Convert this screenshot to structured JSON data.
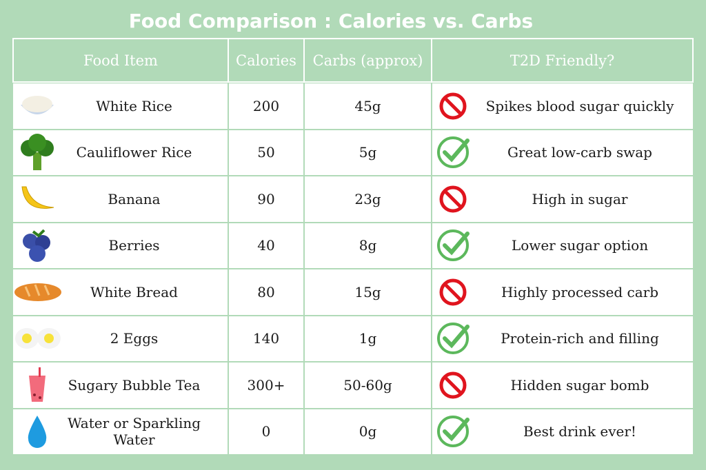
{
  "title": "Food Comparison : Calories vs. Carbs",
  "headers": [
    "Food Item",
    "Calories",
    "Carbs (approx)",
    "T2D Friendly?"
  ],
  "rows": [
    {
      "food": "White Rice",
      "icon": "rice-bowl-icon",
      "calories": "200",
      "carbs": "45g",
      "friendly": false,
      "note": "Spikes blood sugar quickly"
    },
    {
      "food": "Cauliflower Rice",
      "icon": "broccoli-icon",
      "calories": "50",
      "carbs": "5g",
      "friendly": true,
      "note": "Great low-carb swap"
    },
    {
      "food": "Banana",
      "icon": "banana-icon",
      "calories": "90",
      "carbs": "23g",
      "friendly": false,
      "note": "High in sugar"
    },
    {
      "food": "Berries",
      "icon": "blueberries-icon",
      "calories": "40",
      "carbs": "8g",
      "friendly": true,
      "note": "Lower sugar option"
    },
    {
      "food": "White Bread",
      "icon": "bread-icon",
      "calories": "80",
      "carbs": "15g",
      "friendly": false,
      "note": "Highly processed carb"
    },
    {
      "food": "2 Eggs",
      "icon": "eggs-icon",
      "calories": "140",
      "carbs": "1g",
      "friendly": true,
      "note": "Protein-rich and filling"
    },
    {
      "food": "Sugary Bubble Tea",
      "icon": "bubble-tea-icon",
      "calories": "300+",
      "carbs": "50-60g",
      "friendly": false,
      "note": "Hidden sugar bomb"
    },
    {
      "food": "Water or Sparkling Water",
      "icon": "water-drop-icon",
      "calories": "0",
      "carbs": "0g",
      "friendly": true,
      "note": "Best drink ever!"
    }
  ],
  "colors": {
    "background": "#b1dab8",
    "check": "#5cb85c",
    "no": "#e0141e"
  }
}
